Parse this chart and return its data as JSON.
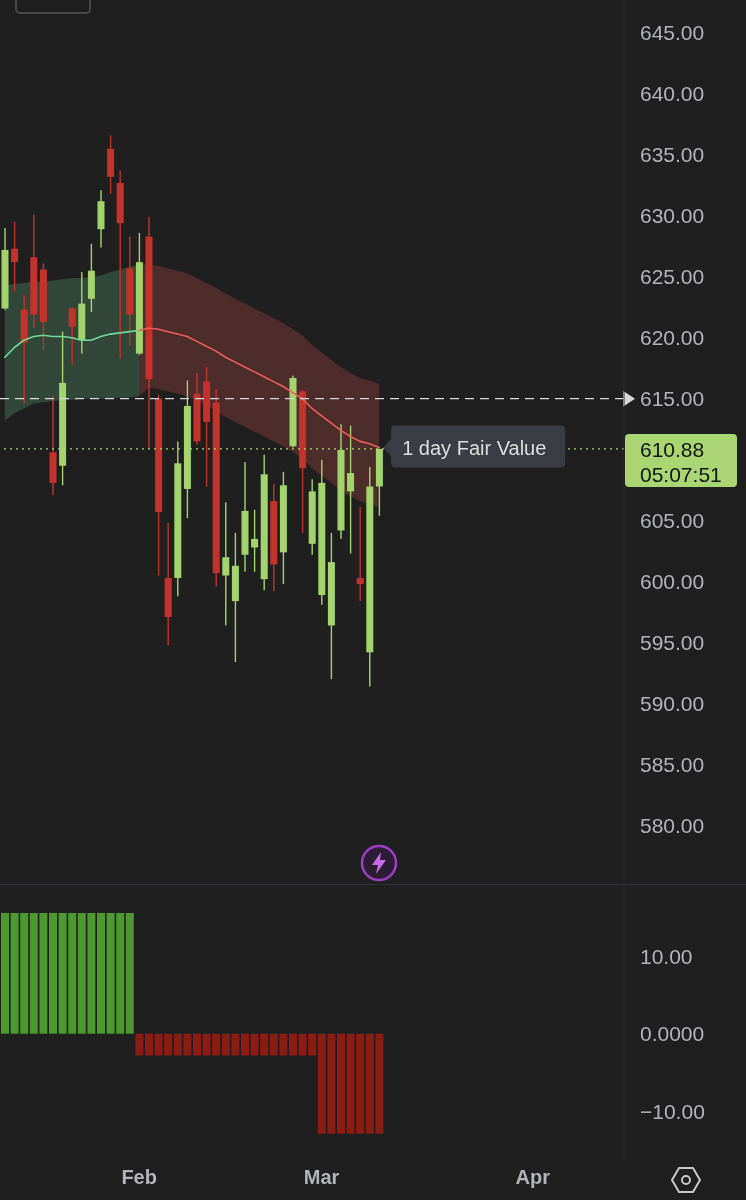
{
  "chart_data": [
    {
      "type": "candlestick",
      "categories": [
        null,
        null,
        null,
        null,
        null,
        null,
        null,
        null,
        null,
        null,
        null,
        null,
        null,
        null,
        null,
        null,
        null,
        null,
        null,
        null,
        null,
        null,
        null,
        null,
        null,
        null,
        null,
        null,
        null,
        null,
        null,
        null,
        null,
        null,
        null,
        null,
        null,
        null,
        null,
        null,
        null,
        null,
        null,
        null,
        null,
        null,
        null,
        null,
        null,
        null,
        null,
        null,
        null,
        null,
        null,
        null,
        null,
        null,
        null,
        null,
        null,
        null,
        null,
        null,
        null
      ],
      "ohlc": [
        [
          622.4,
          629.0,
          622.3,
          627.2
        ],
        [
          627.3,
          629.5,
          623.8,
          626.2
        ],
        [
          622.3,
          623.5,
          614.6,
          619.6
        ],
        [
          626.6,
          630.1,
          620.8,
          621.9
        ],
        [
          625.6,
          626.1,
          619.0,
          621.3
        ],
        [
          610.6,
          615.2,
          607.1,
          608.1
        ],
        [
          609.5,
          620.5,
          607.9,
          616.3
        ],
        [
          622.4,
          622.5,
          617.8,
          620.9
        ],
        [
          619.8,
          625.4,
          618.7,
          622.8
        ],
        [
          623.2,
          627.7,
          622.1,
          625.5
        ],
        [
          628.9,
          632.1,
          627.4,
          631.2
        ],
        [
          635.5,
          636.6,
          631.8,
          633.2
        ],
        [
          632.7,
          633.7,
          618.3,
          629.4
        ],
        [
          625.7,
          628.3,
          619.3,
          621.9
        ],
        [
          618.7,
          628.6,
          618.6,
          626.2
        ],
        [
          628.3,
          629.9,
          610.9,
          616.6
        ],
        [
          615.0,
          615.3,
          600.5,
          605.7
        ],
        [
          600.3,
          604.8,
          594.8,
          597.1
        ],
        [
          600.3,
          611.5,
          598.8,
          609.7
        ],
        [
          607.6,
          616.5,
          605.2,
          614.4
        ],
        [
          615.4,
          617.1,
          611.2,
          611.5
        ],
        [
          616.4,
          617.6,
          607.8,
          613.1
        ],
        [
          614.7,
          615.8,
          599.6,
          600.7
        ],
        [
          600.5,
          606.5,
          596.4,
          602.0
        ],
        [
          598.4,
          604.0,
          593.4,
          601.3
        ],
        [
          602.2,
          609.8,
          600.8,
          605.8
        ],
        [
          602.8,
          605.9,
          600.8,
          603.5
        ],
        [
          600.2,
          610.4,
          599.3,
          608.8
        ],
        [
          606.6,
          608.0,
          599.2,
          601.4
        ],
        [
          602.4,
          609.0,
          599.8,
          607.9
        ],
        [
          611.1,
          616.9,
          611.0,
          616.7
        ],
        [
          615.6,
          615.7,
          604.0,
          609.3
        ],
        [
          603.1,
          608.4,
          602.2,
          607.4
        ],
        [
          598.9,
          610.0,
          598.1,
          608.1
        ],
        [
          596.4,
          604.0,
          592.0,
          601.6
        ],
        [
          604.2,
          612.9,
          603.5,
          610.8
        ],
        [
          607.4,
          612.8,
          602.3,
          608.9
        ],
        [
          600.3,
          606.1,
          598.4,
          599.8
        ],
        [
          594.2,
          609.4,
          591.4,
          607.8
        ],
        [
          607.8,
          610.9,
          605.4,
          610.88
        ],
        null,
        null,
        null,
        null,
        null,
        null,
        null,
        null,
        null,
        null,
        null,
        null,
        null,
        null,
        null,
        null,
        null,
        null,
        null,
        null,
        null,
        null,
        null,
        null,
        null
      ],
      "colors": [
        "#a3d46c",
        "#c6322b",
        "#c6322b",
        "#c6322b",
        "#c6322b",
        "#c6322b",
        "#a3d46c",
        "#c6322b",
        "#a3d46c",
        "#a3d46c",
        "#a3d46c",
        "#c6322b",
        "#c6322b",
        "#c6322b",
        "#a3d46c",
        "#c6322b",
        "#c6322b",
        "#c6322b",
        "#a3d46c",
        "#a3d46c",
        "#c6322b",
        "#c6322b",
        "#c6322b",
        "#a3d46c",
        "#a3d46c",
        "#a3d46c",
        "#a3d46c",
        "#a3d46c",
        "#c6322b",
        "#a3d46c",
        "#a3d46c",
        "#c6322b",
        "#a3d46c",
        "#a3d46c",
        "#a3d46c",
        "#a3d46c",
        "#a3d46c",
        "#c6322b",
        "#a3d46c",
        "#a3d46c",
        null,
        null,
        null,
        null,
        null,
        null,
        null,
        null,
        null,
        null,
        null,
        null,
        null,
        null,
        null,
        null,
        null,
        null,
        null,
        null,
        null,
        null,
        null,
        null,
        null
      ],
      "series": [
        {
          "type": "line",
          "color": "#72d896",
          "values": [
            618.4,
            619.2,
            619.8,
            620.1,
            620.2,
            620.1,
            620.1,
            620.0,
            619.8,
            619.8,
            620.1,
            620.3,
            620.4,
            620.5,
            620.6,
            null,
            null,
            null,
            null,
            null,
            null,
            null,
            null,
            null,
            null,
            null,
            null,
            null,
            null,
            null,
            null,
            null,
            null,
            null,
            null,
            null,
            null,
            null,
            null,
            null,
            null,
            null,
            null,
            null,
            null,
            null,
            null,
            null,
            null,
            null,
            null,
            null,
            null,
            null,
            null,
            null,
            null,
            null,
            null,
            null,
            null,
            null,
            null,
            null,
            null
          ],
          "upper": [
            624.3,
            624.4,
            624.5,
            624.6,
            624.6,
            624.7,
            624.8,
            624.9,
            624.9,
            625.0,
            625.1,
            625.4,
            625.6,
            625.8,
            626.0,
            null,
            null,
            null,
            null,
            null,
            null,
            null,
            null,
            null,
            null,
            null,
            null,
            null,
            null,
            null,
            null,
            null,
            null,
            null,
            null,
            null,
            null,
            null,
            null,
            null,
            null,
            null,
            null,
            null,
            null,
            null,
            null,
            null,
            null,
            null,
            null,
            null,
            null,
            null,
            null,
            null,
            null,
            null,
            null,
            null,
            null,
            null,
            null,
            null,
            null
          ],
          "lower": [
            613.2,
            613.8,
            614.2,
            614.6,
            614.7,
            614.8,
            614.9,
            614.9,
            615.0,
            615.0,
            615.0,
            615.0,
            615.1,
            615.1,
            615.2,
            null,
            null,
            null,
            null,
            null,
            null,
            null,
            null,
            null,
            null,
            null,
            null,
            null,
            null,
            null,
            null,
            null,
            null,
            null,
            null,
            null,
            null,
            null,
            null,
            null,
            null,
            null,
            null,
            null,
            null,
            null,
            null,
            null,
            null,
            null,
            null,
            null,
            null,
            null,
            null,
            null,
            null,
            null,
            null,
            null,
            null,
            null,
            null,
            null,
            null
          ]
        },
        {
          "type": "line",
          "name": "1 day Fair Value",
          "color": "#f05c5c",
          "values": [
            null,
            null,
            null,
            null,
            null,
            null,
            null,
            null,
            null,
            null,
            null,
            null,
            null,
            null,
            620.6,
            620.8,
            620.7,
            620.5,
            620.3,
            620.1,
            619.7,
            619.3,
            618.9,
            618.4,
            618.0,
            617.6,
            617.2,
            616.8,
            616.4,
            616.0,
            615.5,
            615.0,
            614.2,
            613.6,
            613.0,
            612.4,
            611.9,
            611.5,
            611.3,
            611.0,
            null,
            null,
            null,
            null,
            null,
            null,
            null,
            null,
            null,
            null,
            null,
            null,
            null,
            null,
            null,
            null,
            null,
            null,
            null,
            null,
            null,
            null,
            null,
            null,
            null
          ],
          "upper": [
            null,
            null,
            null,
            null,
            null,
            null,
            null,
            null,
            null,
            null,
            null,
            null,
            null,
            null,
            626.0,
            626.0,
            625.9,
            625.7,
            625.5,
            625.3,
            624.9,
            624.5,
            624.1,
            623.6,
            623.2,
            622.8,
            622.4,
            622.0,
            621.6,
            621.2,
            620.7,
            620.2,
            619.4,
            618.8,
            618.2,
            617.6,
            617.1,
            616.7,
            616.5,
            616.2,
            null,
            null,
            null,
            null,
            null,
            null,
            null,
            null,
            null,
            null,
            null,
            null,
            null,
            null,
            null,
            null,
            null,
            null,
            null,
            null,
            null,
            null,
            null,
            null,
            null
          ],
          "lower": [
            null,
            null,
            null,
            null,
            null,
            null,
            null,
            null,
            null,
            null,
            null,
            null,
            null,
            null,
            615.2,
            615.9,
            615.8,
            615.6,
            615.4,
            615.2,
            614.8,
            614.4,
            614.0,
            613.5,
            613.1,
            612.7,
            612.3,
            611.9,
            611.5,
            611.1,
            610.6,
            610.1,
            609.3,
            608.7,
            608.1,
            607.5,
            607.0,
            606.6,
            606.4,
            606.1,
            null,
            null,
            null,
            null,
            null,
            null,
            null,
            null,
            null,
            null,
            null,
            null,
            null,
            null,
            null,
            null,
            null,
            null,
            null,
            null,
            null,
            null,
            null,
            null,
            null
          ]
        }
      ],
      "ylim": [
        575.2,
        647.7
      ],
      "yticks": [
        {
          "value": 580,
          "label": "580.00"
        },
        {
          "value": 585,
          "label": "585.00"
        },
        {
          "value": 590,
          "label": "590.00"
        },
        {
          "value": 595,
          "label": "595.00"
        },
        {
          "value": 600,
          "label": "600.00"
        },
        {
          "value": 605,
          "label": "605.00"
        },
        {
          "value": 615,
          "label": "615.00"
        },
        {
          "value": 620,
          "label": "620.00"
        },
        {
          "value": 625,
          "label": "625.00"
        },
        {
          "value": 630,
          "label": "630.00"
        },
        {
          "value": 635,
          "label": "635.00"
        },
        {
          "value": 640,
          "label": "640.00"
        },
        {
          "value": 645,
          "label": "645.00"
        }
      ],
      "ref_lines": [
        {
          "axis": "y",
          "value": 615,
          "color": "#d8d8d8",
          "line_style": "dashed"
        },
        {
          "axis": "y",
          "value": 610.88,
          "label": "610.88",
          "color": "#a9d672",
          "line_style": "dotted"
        }
      ],
      "annotations": [
        "05:07:51"
      ],
      "tick_labels": "y"
    },
    {
      "type": "bar",
      "categories": [
        null,
        null,
        null,
        null,
        null,
        null,
        null,
        null,
        null,
        null,
        null,
        null,
        null,
        null,
        "Feb",
        null,
        null,
        null,
        null,
        null,
        null,
        null,
        null,
        null,
        null,
        null,
        null,
        null,
        null,
        null,
        null,
        null,
        null,
        "Mar",
        null,
        null,
        null,
        null,
        null,
        null,
        null,
        null,
        null,
        null,
        null,
        null,
        null,
        null,
        null,
        null,
        null,
        null,
        null,
        null,
        null,
        "Apr",
        null,
        null,
        null,
        null,
        null,
        null,
        null,
        null,
        null
      ],
      "values": [
        15.6,
        15.6,
        15.6,
        15.6,
        15.6,
        15.6,
        15.6,
        15.6,
        15.6,
        15.6,
        15.6,
        15.6,
        15.6,
        15.6,
        -2.8,
        -2.8,
        -2.8,
        -2.8,
        -2.8,
        -2.8,
        -2.8,
        -2.8,
        -2.8,
        -2.8,
        -2.8,
        -2.8,
        -2.8,
        -2.8,
        -2.8,
        -2.8,
        -2.8,
        -2.8,
        -2.8,
        -12.9,
        -12.9,
        -12.9,
        -12.9,
        -12.9,
        -12.9,
        -12.9,
        null,
        null,
        null,
        null,
        null,
        null,
        null,
        null,
        null,
        null,
        null,
        null,
        null,
        null,
        null,
        null,
        null,
        null,
        null,
        null,
        null,
        null,
        null,
        null,
        null
      ],
      "colors": [
        "#4c992e",
        "#4c992e",
        "#4c992e",
        "#4c992e",
        "#4c992e",
        "#4c992e",
        "#4c992e",
        "#4c992e",
        "#4c992e",
        "#4c992e",
        "#4c992e",
        "#4c992e",
        "#4c992e",
        "#4c992e",
        "#8b1c12",
        "#8b1c12",
        "#8b1c12",
        "#8b1c12",
        "#8b1c12",
        "#8b1c12",
        "#8b1c12",
        "#8b1c12",
        "#8b1c12",
        "#8b1c12",
        "#8b1c12",
        "#8b1c12",
        "#8b1c12",
        "#8b1c12",
        "#8b1c12",
        "#8b1c12",
        "#8b1c12",
        "#8b1c12",
        "#8b1c12",
        "#8b1c12",
        "#8b1c12",
        "#8b1c12",
        "#8b1c12",
        "#8b1c12",
        "#8b1c12",
        "#8b1c12",
        null,
        null,
        null,
        null,
        null,
        null,
        null,
        null,
        null,
        null,
        null,
        null,
        null,
        null,
        null,
        null,
        null,
        null,
        null,
        null,
        null,
        null,
        null,
        null,
        null
      ],
      "ylim": [
        -16.3,
        19.2
      ],
      "yticks": [
        {
          "value": 10,
          "label": "10.00"
        },
        {
          "value": 0,
          "label": "0.0000"
        },
        {
          "value": -10,
          "label": "−10.00"
        }
      ]
    }
  ]
}
